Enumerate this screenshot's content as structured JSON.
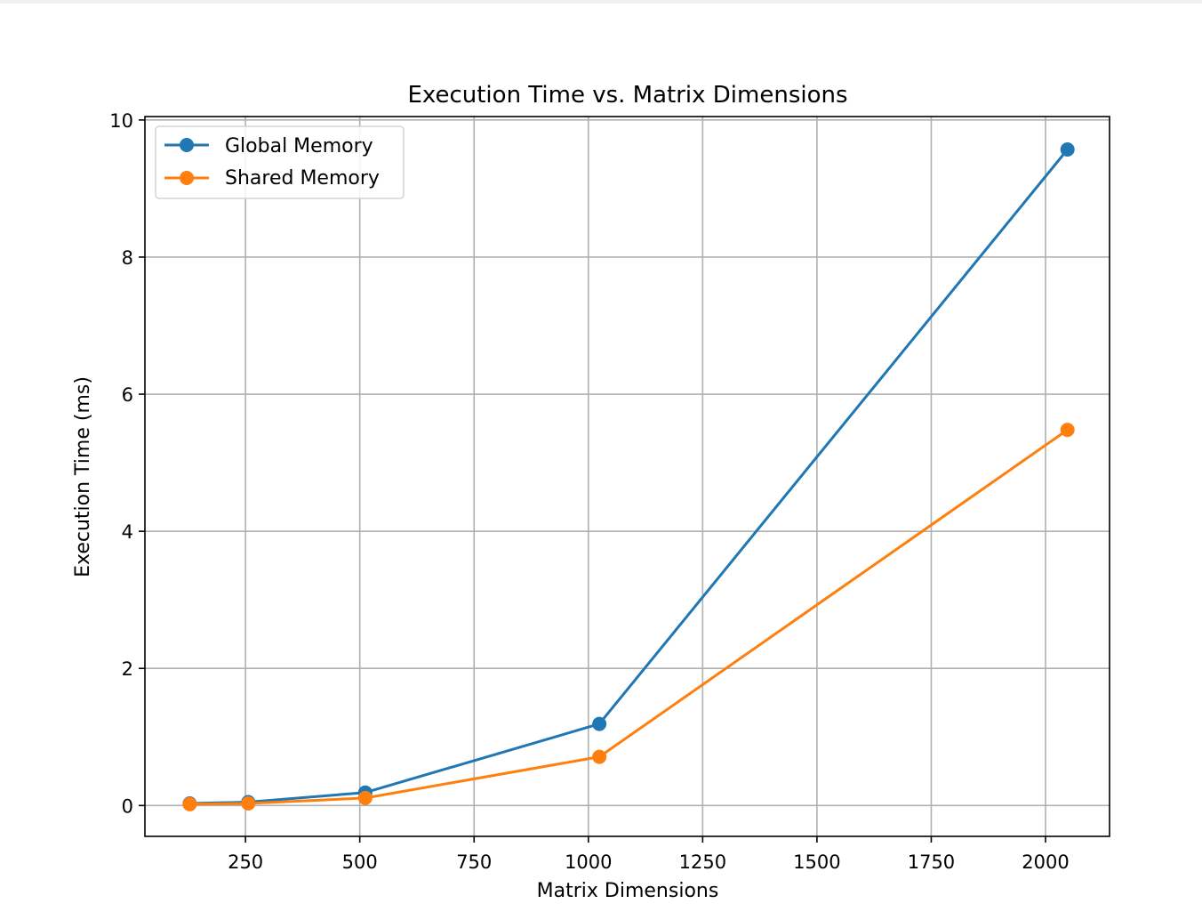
{
  "chart_data": {
    "type": "line",
    "title": "Execution Time vs. Matrix Dimensions",
    "xlabel": "Matrix Dimensions",
    "ylabel": "Execution Time (ms)",
    "xlim": [
      30,
      2140
    ],
    "ylim": [
      -0.45,
      10.05
    ],
    "xticks": [
      250,
      500,
      750,
      1000,
      1250,
      1500,
      1750,
      2000
    ],
    "yticks": [
      0,
      2,
      4,
      6,
      8,
      10
    ],
    "grid": true,
    "legend_position": "top-left",
    "series": [
      {
        "name": "Global Memory",
        "color": "#1f77b4",
        "x": [
          128,
          256,
          512,
          1024,
          2048
        ],
        "y": [
          0.03,
          0.05,
          0.19,
          1.19,
          9.57
        ]
      },
      {
        "name": "Shared Memory",
        "color": "#ff7f0e",
        "x": [
          128,
          256,
          512,
          1024,
          2048
        ],
        "y": [
          0.02,
          0.03,
          0.11,
          0.71,
          5.48
        ]
      }
    ]
  }
}
